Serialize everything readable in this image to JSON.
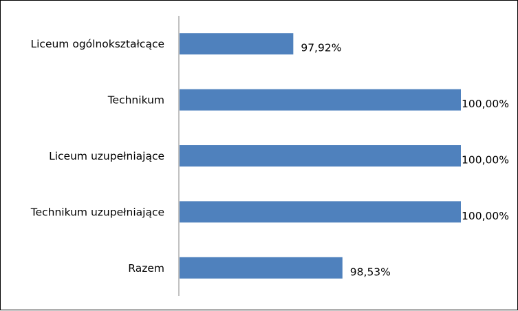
{
  "chart_data": {
    "type": "bar",
    "orientation": "horizontal",
    "categories": [
      "Liceum ogólnokształcące",
      "Technikum",
      "Liceum uzupełniające",
      "Technikum uzupełniające",
      "Razem"
    ],
    "values": [
      97.92,
      100.0,
      100.0,
      100.0,
      98.53
    ],
    "data_labels": [
      "97,92%",
      "100,00%",
      "100,00%",
      "100,00%",
      "98,53%"
    ],
    "xlim": [
      96.5,
      100
    ],
    "bar_color": "#4F81BD",
    "grid": false,
    "legend": "none",
    "title": "",
    "xlabel": "",
    "ylabel": ""
  }
}
